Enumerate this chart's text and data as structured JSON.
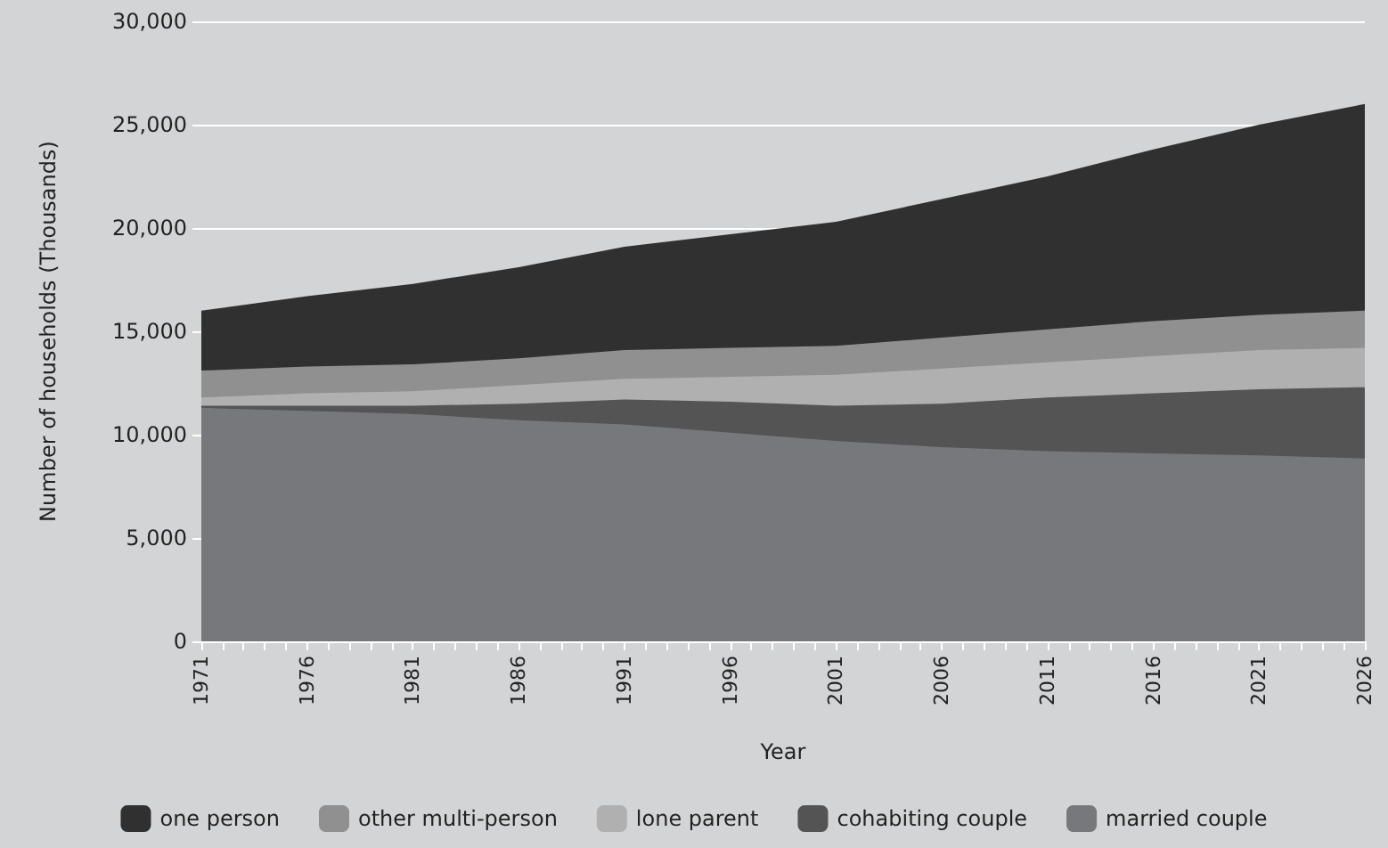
{
  "chart_data": {
    "type": "area",
    "stacked": true,
    "xlabel": "Year",
    "ylabel": "Number of households (Thousands)",
    "x": [
      1971,
      1976,
      1981,
      1986,
      1991,
      1996,
      2001,
      2006,
      2011,
      2016,
      2021,
      2026
    ],
    "series": [
      {
        "name": "married couple",
        "color": "#77787b",
        "values": [
          11300,
          11150,
          11000,
          10700,
          10500,
          10100,
          9700,
          9400,
          9200,
          9100,
          9000,
          8850
        ]
      },
      {
        "name": "cohabiting couple",
        "color": "#545454",
        "values": [
          100,
          250,
          400,
          800,
          1200,
          1500,
          1700,
          2100,
          2600,
          2900,
          3200,
          3450
        ]
      },
      {
        "name": "lone parent",
        "color": "#b0b0b1",
        "values": [
          400,
          600,
          700,
          900,
          1000,
          1200,
          1500,
          1700,
          1700,
          1800,
          1900,
          1900
        ]
      },
      {
        "name": "other multi-person",
        "color": "#909090",
        "values": [
          1300,
          1300,
          1300,
          1300,
          1400,
          1400,
          1400,
          1500,
          1600,
          1700,
          1700,
          1800
        ]
      },
      {
        "name": "one person",
        "color": "#303030",
        "values": [
          2900,
          3400,
          3900,
          4400,
          5000,
          5500,
          6000,
          6700,
          7400,
          8300,
          9200,
          10000
        ]
      }
    ],
    "xlim": [
      1971,
      2026
    ],
    "xticks": [
      1971,
      {
        "value": 1972,
        "label": null
      },
      {
        "value": 1973,
        "label": null
      },
      {
        "value": 1974,
        "label": null
      },
      {
        "value": 1975,
        "label": null
      },
      1976,
      {
        "value": 1977,
        "label": null
      },
      {
        "value": 1978,
        "label": null
      },
      {
        "value": 1979,
        "label": null
      },
      {
        "value": 1980,
        "label": null
      },
      1981,
      {
        "value": 1982,
        "label": null
      },
      {
        "value": 1983,
        "label": null
      },
      {
        "value": 1984,
        "label": null
      },
      {
        "value": 1985,
        "label": null
      },
      1986,
      {
        "value": 1987,
        "label": null
      },
      {
        "value": 1988,
        "label": null
      },
      {
        "value": 1989,
        "label": null
      },
      {
        "value": 1990,
        "label": null
      },
      1991,
      {
        "value": 1992,
        "label": null
      },
      {
        "value": 1993,
        "label": null
      },
      {
        "value": 1994,
        "label": null
      },
      {
        "value": 1995,
        "label": null
      },
      1996,
      {
        "value": 1997,
        "label": null
      },
      {
        "value": 1998,
        "label": null
      },
      {
        "value": 1999,
        "label": null
      },
      {
        "value": 2000,
        "label": null
      },
      2001,
      {
        "value": 2002,
        "label": null
      },
      {
        "value": 2003,
        "label": null
      },
      {
        "value": 2004,
        "label": null
      },
      {
        "value": 2005,
        "label": null
      },
      2006,
      {
        "value": 2007,
        "label": null
      },
      {
        "value": 2008,
        "label": null
      },
      {
        "value": 2009,
        "label": null
      },
      {
        "value": 2010,
        "label": null
      },
      2011,
      {
        "value": 2012,
        "label": null
      },
      {
        "value": 2013,
        "label": null
      },
      {
        "value": 2014,
        "label": null
      },
      {
        "value": 2015,
        "label": null
      },
      2016,
      {
        "value": 2017,
        "label": null
      },
      {
        "value": 2018,
        "label": null
      },
      {
        "value": 2019,
        "label": null
      },
      {
        "value": 2020,
        "label": null
      },
      2021,
      {
        "value": 2022,
        "label": null
      },
      {
        "value": 2023,
        "label": null
      },
      {
        "value": 2024,
        "label": null
      },
      {
        "value": 2025,
        "label": null
      },
      2026
    ],
    "ylim": [
      0,
      30000
    ],
    "yticks": [
      0,
      {
        "value": 5000,
        "label": "5,000"
      },
      {
        "value": 10000,
        "label": "10,000"
      },
      {
        "value": 15000,
        "label": "15,000"
      },
      {
        "value": 20000,
        "label": "20,000"
      },
      {
        "value": 25000,
        "label": "25,000"
      },
      {
        "value": 30000,
        "label": "30,000"
      }
    ],
    "grid": "y",
    "legend": "bottom",
    "marker": "none"
  }
}
